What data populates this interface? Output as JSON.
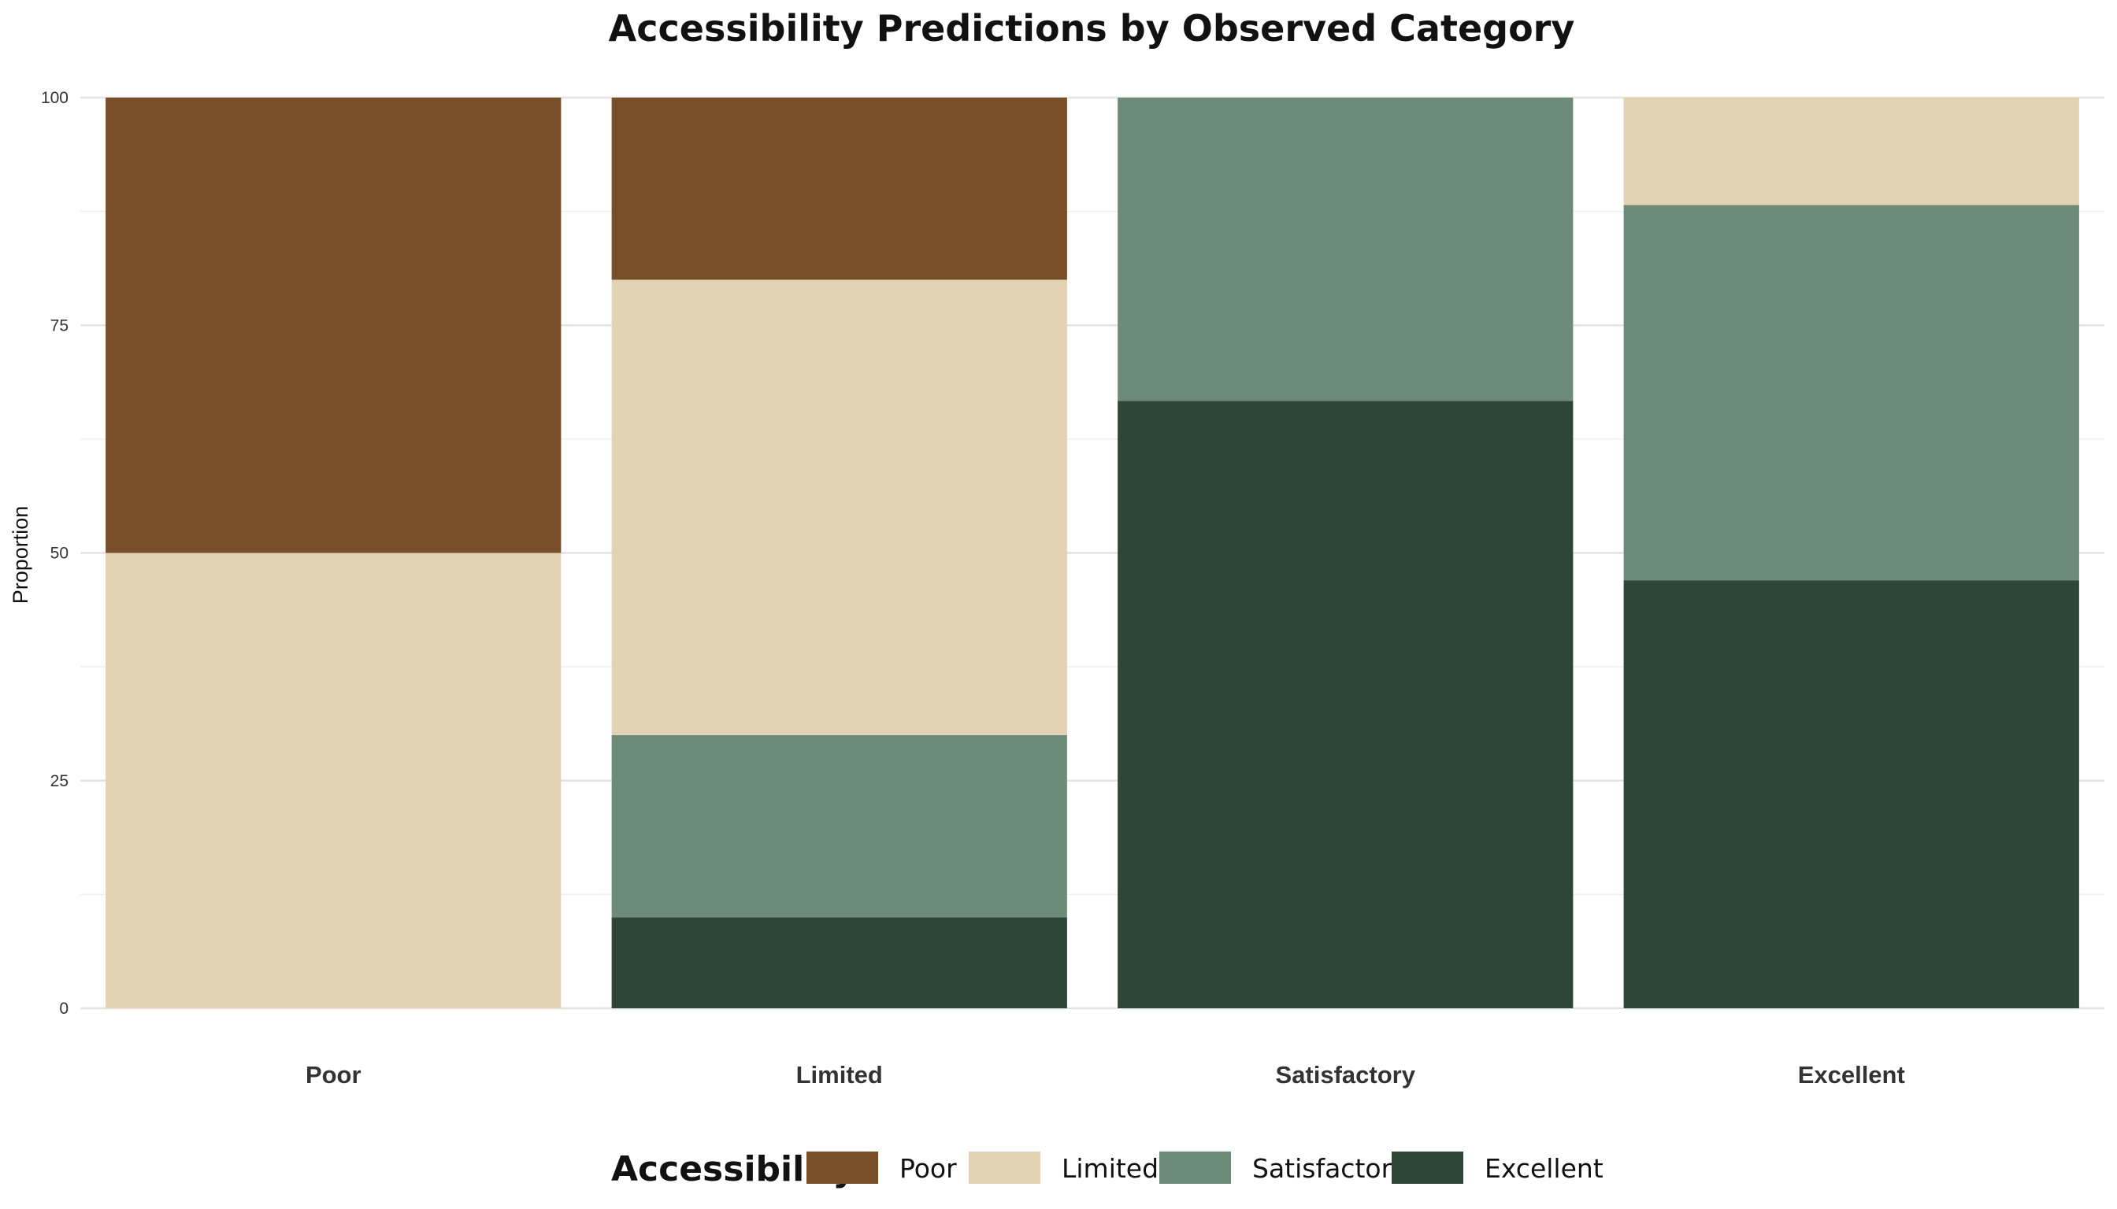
{
  "chart_data": {
    "type": "bar",
    "stacked": true,
    "title": "Accessibility Predictions by Observed Category",
    "xlabel": "",
    "ylabel": "Proportion",
    "ylim": [
      0,
      100
    ],
    "yticks": [
      "0",
      "25",
      "50",
      "75",
      "100"
    ],
    "grid": true,
    "categories": [
      "Poor",
      "Limited",
      "Satisfactory",
      "Excellent"
    ],
    "series": [
      {
        "name": "Poor",
        "color": "#774E28",
        "values": [
          50,
          20,
          0,
          0
        ]
      },
      {
        "name": "Limited",
        "color": "#E2D3B4",
        "values": [
          50,
          50,
          0,
          11.8
        ]
      },
      {
        "name": "Satisfactory",
        "color": "#6D8B78",
        "values": [
          0,
          20,
          33.3,
          41.2
        ]
      },
      {
        "name": "Excellent",
        "color": "#2D4635",
        "values": [
          0,
          10,
          66.7,
          47
        ]
      }
    ],
    "legend": {
      "title": "Accessibility:",
      "position": "bottom"
    }
  }
}
